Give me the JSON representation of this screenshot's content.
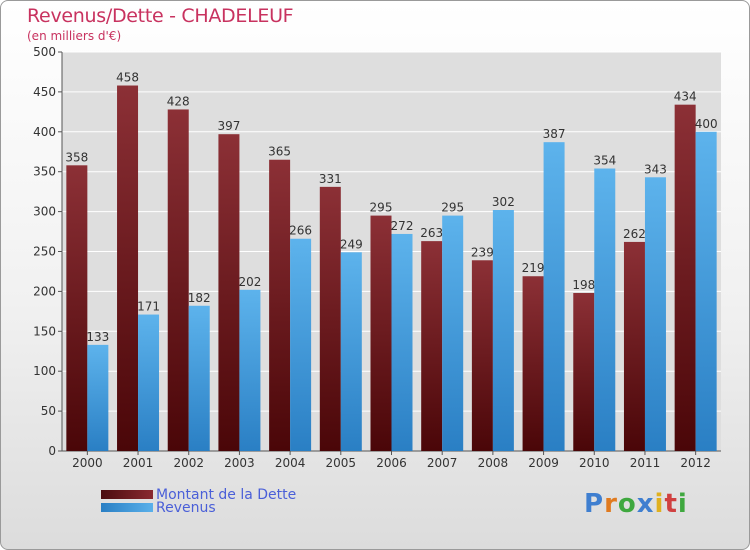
{
  "chart_data": {
    "type": "bar",
    "title": "Revenus/Dette - CHADELEUF",
    "subtitle": "(en milliers d'€)",
    "categories": [
      "2000",
      "2001",
      "2002",
      "2003",
      "2004",
      "2005",
      "2006",
      "2007",
      "2008",
      "2009",
      "2010",
      "2011",
      "2012"
    ],
    "series": [
      {
        "name": "Montant de la Dette",
        "color": "#7a1f24",
        "values": [
          358,
          458,
          428,
          397,
          365,
          331,
          295,
          263,
          239,
          219,
          198,
          262,
          434
        ]
      },
      {
        "name": "Revenus",
        "color": "#4aa3e0",
        "values": [
          133,
          171,
          182,
          202,
          266,
          249,
          272,
          295,
          302,
          387,
          354,
          343,
          400
        ]
      }
    ],
    "ylim": [
      0,
      500
    ],
    "yticks": [
      0,
      50,
      100,
      150,
      200,
      250,
      300,
      350,
      400,
      450,
      500
    ],
    "grid": true,
    "legend": "bottom-left"
  },
  "logo": {
    "letters": [
      {
        "ch": "P",
        "color": "#3f7fd0"
      },
      {
        "ch": "r",
        "color": "#e07a1f"
      },
      {
        "ch": "o",
        "color": "#3fa83f"
      },
      {
        "ch": "x",
        "color": "#3f7fd0"
      },
      {
        "ch": "i",
        "color": "#e0b01f"
      },
      {
        "ch": "t",
        "color": "#d04040"
      },
      {
        "ch": "i",
        "color": "#3fa83f"
      }
    ]
  }
}
